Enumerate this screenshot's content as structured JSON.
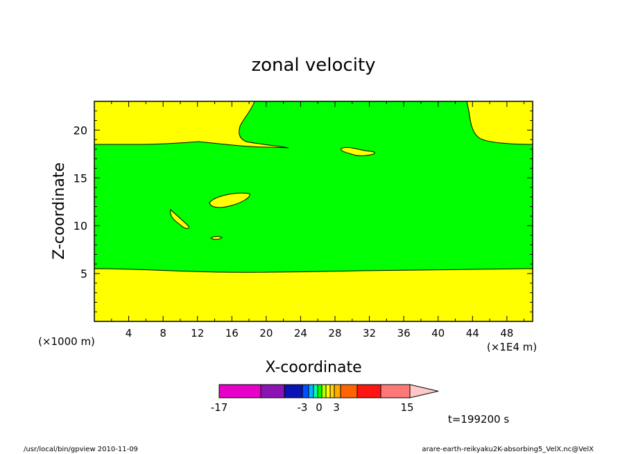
{
  "chart_data": {
    "type": "heatmap",
    "title": "zonal velocity",
    "xlabel": "X-coordinate",
    "ylabel": "Z-coordinate",
    "x_unit_note": "(×1E4 m)",
    "z_unit_note": "(×1000 m)",
    "xlim": [
      0,
      51
    ],
    "ylim": [
      0,
      23
    ],
    "x_ticks": [
      "4",
      "8",
      "12",
      "16",
      "20",
      "24",
      "28",
      "32",
      "36",
      "40",
      "44",
      "48"
    ],
    "y_ticks": [
      "5",
      "10",
      "15",
      "20"
    ],
    "colorbar": {
      "labels": [
        "-17",
        "-3",
        "0",
        "3",
        "15"
      ],
      "colors": [
        "#e600c8",
        "#8c14b4",
        "#0a14b4",
        "#0050ff",
        "#00b4ff",
        "#00ffb4",
        "#00ff00",
        "#b4ff00",
        "#ffff00",
        "#ffd200",
        "#ffaa00",
        "#ff6400",
        "#ff1414",
        "#ff7878"
      ],
      "extend_color": "#ffc8c8"
    },
    "regions": {
      "background_value_color": "#00ff00",
      "yellow_color": "#ffff00"
    }
  },
  "annotations": {
    "time": "t=199200 s",
    "footer_left": "/usr/local/bin/gpview  2010-11-09",
    "footer_right": "arare-earth-reikyaku2K-absorbing5_VelX.nc@VelX"
  }
}
